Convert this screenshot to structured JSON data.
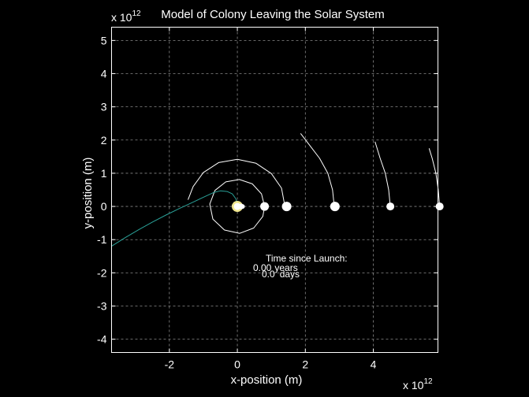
{
  "chart_data": {
    "type": "line",
    "title": "Model of Colony Leaving the Solar System",
    "xlabel": "x-position (m)",
    "ylabel": "y-position (m)",
    "x_exponent_label": "x 10",
    "x_exponent": "12",
    "y_exponent_label": "x 10",
    "y_exponent": "12",
    "xlim": [
      -3.7,
      5.9
    ],
    "ylim": [
      -4.4,
      5.4
    ],
    "x_ticks": [
      "-2",
      "0",
      "2",
      "4"
    ],
    "y_ticks": [
      "-4",
      "-3",
      "-2",
      "-1",
      "0",
      "1",
      "2",
      "3",
      "4",
      "5"
    ],
    "grid": true,
    "background": "#000000",
    "colors": {
      "orbit": "#ffffff",
      "colony": "#2aa198",
      "grid": "#8a8a8a",
      "axes": "#ffffff"
    },
    "annotation": {
      "header": "Time since Launch:",
      "years_value": "0.00",
      "years_unit": "years",
      "days_value": "0.0",
      "days_unit": "days"
    },
    "series": [
      {
        "kind": "orbit_arc",
        "values": [
          [
            0.06,
            0.0
          ],
          [
            0.06,
            0.06
          ],
          [
            0.0,
            0.07
          ],
          [
            -0.05,
            0.04
          ],
          [
            -0.07,
            0.0
          ],
          [
            -0.05,
            -0.04
          ],
          [
            0.0,
            -0.07
          ],
          [
            0.06,
            -0.04
          ],
          [
            0.06,
            0.0
          ]
        ]
      },
      {
        "kind": "orbit_arc",
        "values": [
          [
            0.11,
            0.0
          ],
          [
            0.1,
            0.07
          ],
          [
            0.04,
            0.12
          ],
          [
            -0.04,
            0.12
          ],
          [
            -0.1,
            0.06
          ],
          [
            -0.12,
            0.0
          ],
          [
            -0.09,
            -0.08
          ],
          [
            0.0,
            -0.12
          ],
          [
            0.1,
            -0.06
          ],
          [
            0.11,
            0.0
          ]
        ]
      },
      {
        "kind": "orbit_arc",
        "values": [
          [
            0.15,
            0.0
          ],
          [
            0.13,
            0.08
          ],
          [
            0.07,
            0.14
          ],
          [
            -0.02,
            0.16
          ],
          [
            -0.1,
            0.12
          ],
          [
            -0.15,
            0.04
          ],
          [
            -0.14,
            -0.06
          ],
          [
            -0.08,
            -0.13
          ],
          [
            0.02,
            -0.15
          ],
          [
            0.11,
            -0.1
          ],
          [
            0.15,
            0.0
          ]
        ]
      },
      {
        "kind": "orbit_arc",
        "values": [
          [
            0.8,
            0.0
          ],
          [
            0.71,
            0.38
          ],
          [
            0.44,
            0.68
          ],
          [
            0.06,
            0.81
          ],
          [
            -0.34,
            0.74
          ],
          [
            -0.66,
            0.48
          ],
          [
            -0.81,
            0.07
          ],
          [
            -0.72,
            -0.38
          ],
          [
            -0.38,
            -0.71
          ],
          [
            0.07,
            -0.81
          ],
          [
            0.48,
            -0.65
          ],
          [
            0.75,
            -0.3
          ],
          [
            0.8,
            0.0
          ]
        ]
      },
      {
        "kind": "orbit_arc",
        "values": [
          [
            1.4,
            0.0
          ],
          [
            1.3,
            0.55
          ],
          [
            1.0,
            0.99
          ],
          [
            0.55,
            1.3
          ],
          [
            0.0,
            1.42
          ],
          [
            -0.55,
            1.32
          ],
          [
            -1.0,
            1.02
          ],
          [
            -1.3,
            0.6
          ],
          [
            -1.45,
            0.2
          ]
        ]
      },
      {
        "kind": "orbit_arc",
        "values": [
          [
            2.85,
            0.0
          ],
          [
            2.8,
            0.5
          ],
          [
            2.66,
            1.0
          ],
          [
            2.42,
            1.45
          ],
          [
            2.12,
            1.85
          ],
          [
            1.86,
            2.2
          ]
        ]
      },
      {
        "kind": "orbit_arc",
        "values": [
          [
            4.5,
            0.0
          ],
          [
            4.45,
            0.5
          ],
          [
            4.35,
            1.0
          ],
          [
            4.2,
            1.45
          ],
          [
            4.05,
            1.95
          ]
        ]
      },
      {
        "kind": "orbit_arc",
        "values": [
          [
            5.95,
            0.0
          ],
          [
            5.91,
            0.5
          ],
          [
            5.84,
            1.0
          ],
          [
            5.73,
            1.45
          ],
          [
            5.64,
            1.75
          ]
        ]
      },
      {
        "kind": "colony_path",
        "values": [
          [
            -3.7,
            -1.2
          ],
          [
            -3.3,
            -0.94
          ],
          [
            -2.9,
            -0.7
          ],
          [
            -2.5,
            -0.47
          ],
          [
            -2.1,
            -0.26
          ],
          [
            -1.7,
            -0.06
          ],
          [
            -1.3,
            0.13
          ],
          [
            -0.95,
            0.3
          ],
          [
            -0.7,
            0.42
          ],
          [
            -0.5,
            0.47
          ],
          [
            -0.3,
            0.45
          ],
          [
            -0.15,
            0.38
          ],
          [
            -0.05,
            0.24
          ],
          [
            0.0,
            0.1
          ]
        ]
      }
    ],
    "bodies": [
      {
        "name": "",
        "x": 0.0,
        "y": 0.0,
        "r": 4.5
      },
      {
        "name": "",
        "x": 0.07,
        "y": 0.0,
        "r": 3
      },
      {
        "name": "",
        "x": 0.11,
        "y": 0.0,
        "r": 3.5
      },
      {
        "name": "",
        "x": 0.15,
        "y": 0.0,
        "r": 3
      },
      {
        "name": "",
        "x": 0.8,
        "y": 0.0,
        "r": 5.5
      },
      {
        "name": "",
        "x": 1.45,
        "y": 0.0,
        "r": 6
      },
      {
        "name": "",
        "x": 2.87,
        "y": 0.0,
        "r": 6
      },
      {
        "name": "",
        "x": 4.5,
        "y": 0.0,
        "r": 5
      },
      {
        "name": "",
        "x": 5.95,
        "y": 0.0,
        "r": 5
      }
    ],
    "sun": {
      "x": 0.0,
      "y": 0.0,
      "color": "#f0e68c"
    }
  }
}
